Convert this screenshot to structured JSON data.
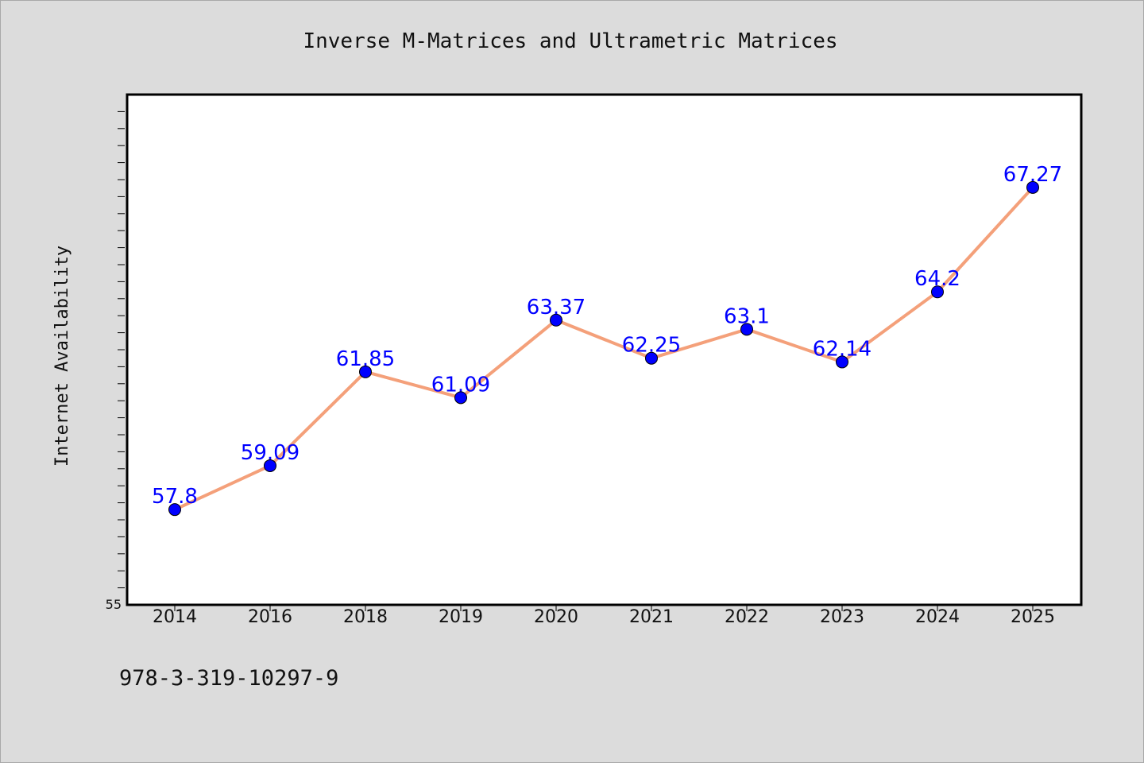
{
  "chart_data": {
    "type": "line",
    "title": "Inverse M-Matrices and Ultrametric Matrices",
    "xlabel": "",
    "ylabel": "Internet Availability",
    "categories": [
      "2014",
      "2016",
      "2018",
      "2019",
      "2020",
      "2021",
      "2022",
      "2023",
      "2024",
      "2025"
    ],
    "series": [
      {
        "values": [
          57.8,
          59.09,
          61.85,
          61.09,
          63.37,
          62.25,
          63.1,
          62.14,
          64.2,
          67.27
        ],
        "labels": [
          "57.8",
          "59.09",
          "61.85",
          "61.09",
          "63.37",
          "62.25",
          "63.1",
          "62.14",
          "64.2",
          "67.27"
        ]
      }
    ],
    "ylim": [
      55,
      70
    ],
    "y_tick_label": "55",
    "grid": false,
    "legend": "none",
    "colors": {
      "line": "#f4a07a",
      "marker": "#0000ff",
      "label": "#0000ff",
      "background": "#dcdcdc",
      "plot_background": "#ffffff"
    }
  },
  "caption": "978-3-319-10297-9"
}
